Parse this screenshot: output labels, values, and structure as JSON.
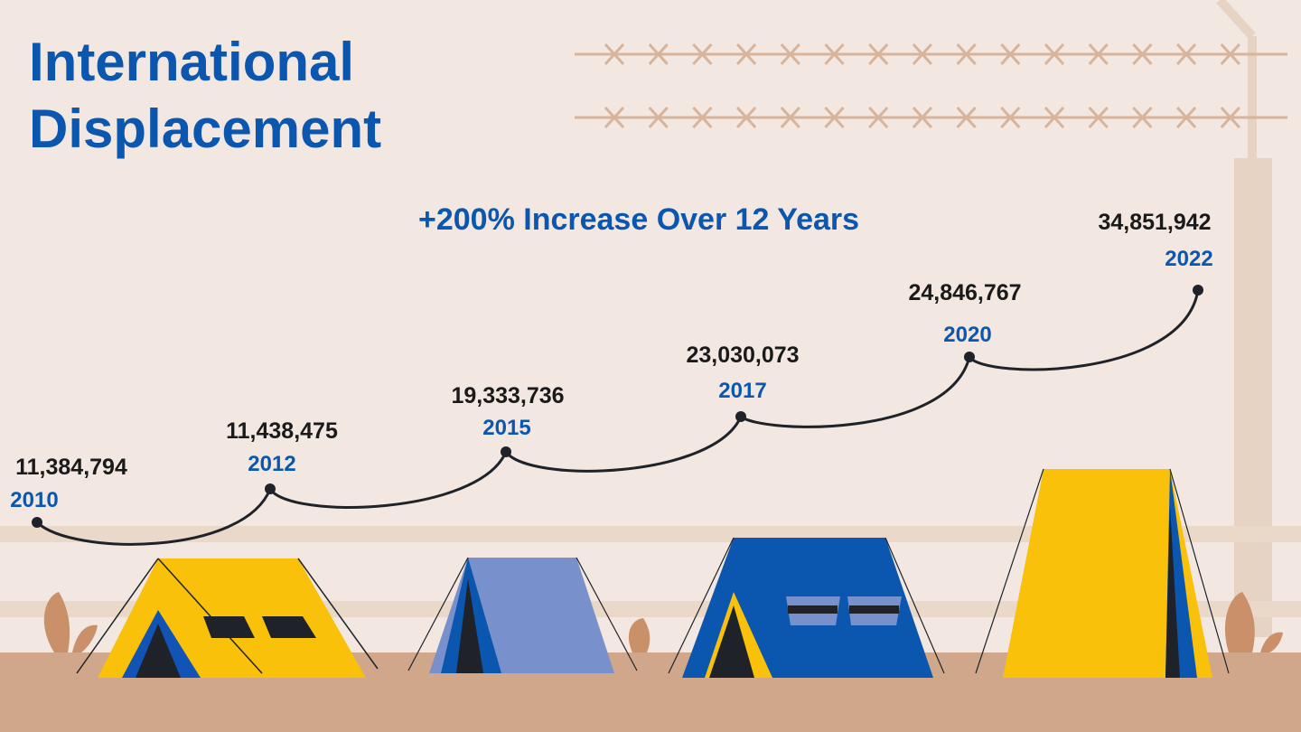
{
  "title": "International Displacement",
  "subtitle": "+200% Increase Over 12 Years",
  "milestones": [
    {
      "value": "11,384,794",
      "year": "2010"
    },
    {
      "value": "11,438,475",
      "year": "2012"
    },
    {
      "value": "19,333,736",
      "year": "2015"
    },
    {
      "value": "23,030,073",
      "year": "2017"
    },
    {
      "value": "24,846,767",
      "year": "2020"
    },
    {
      "value": "34,851,942",
      "year": "2022"
    }
  ]
}
